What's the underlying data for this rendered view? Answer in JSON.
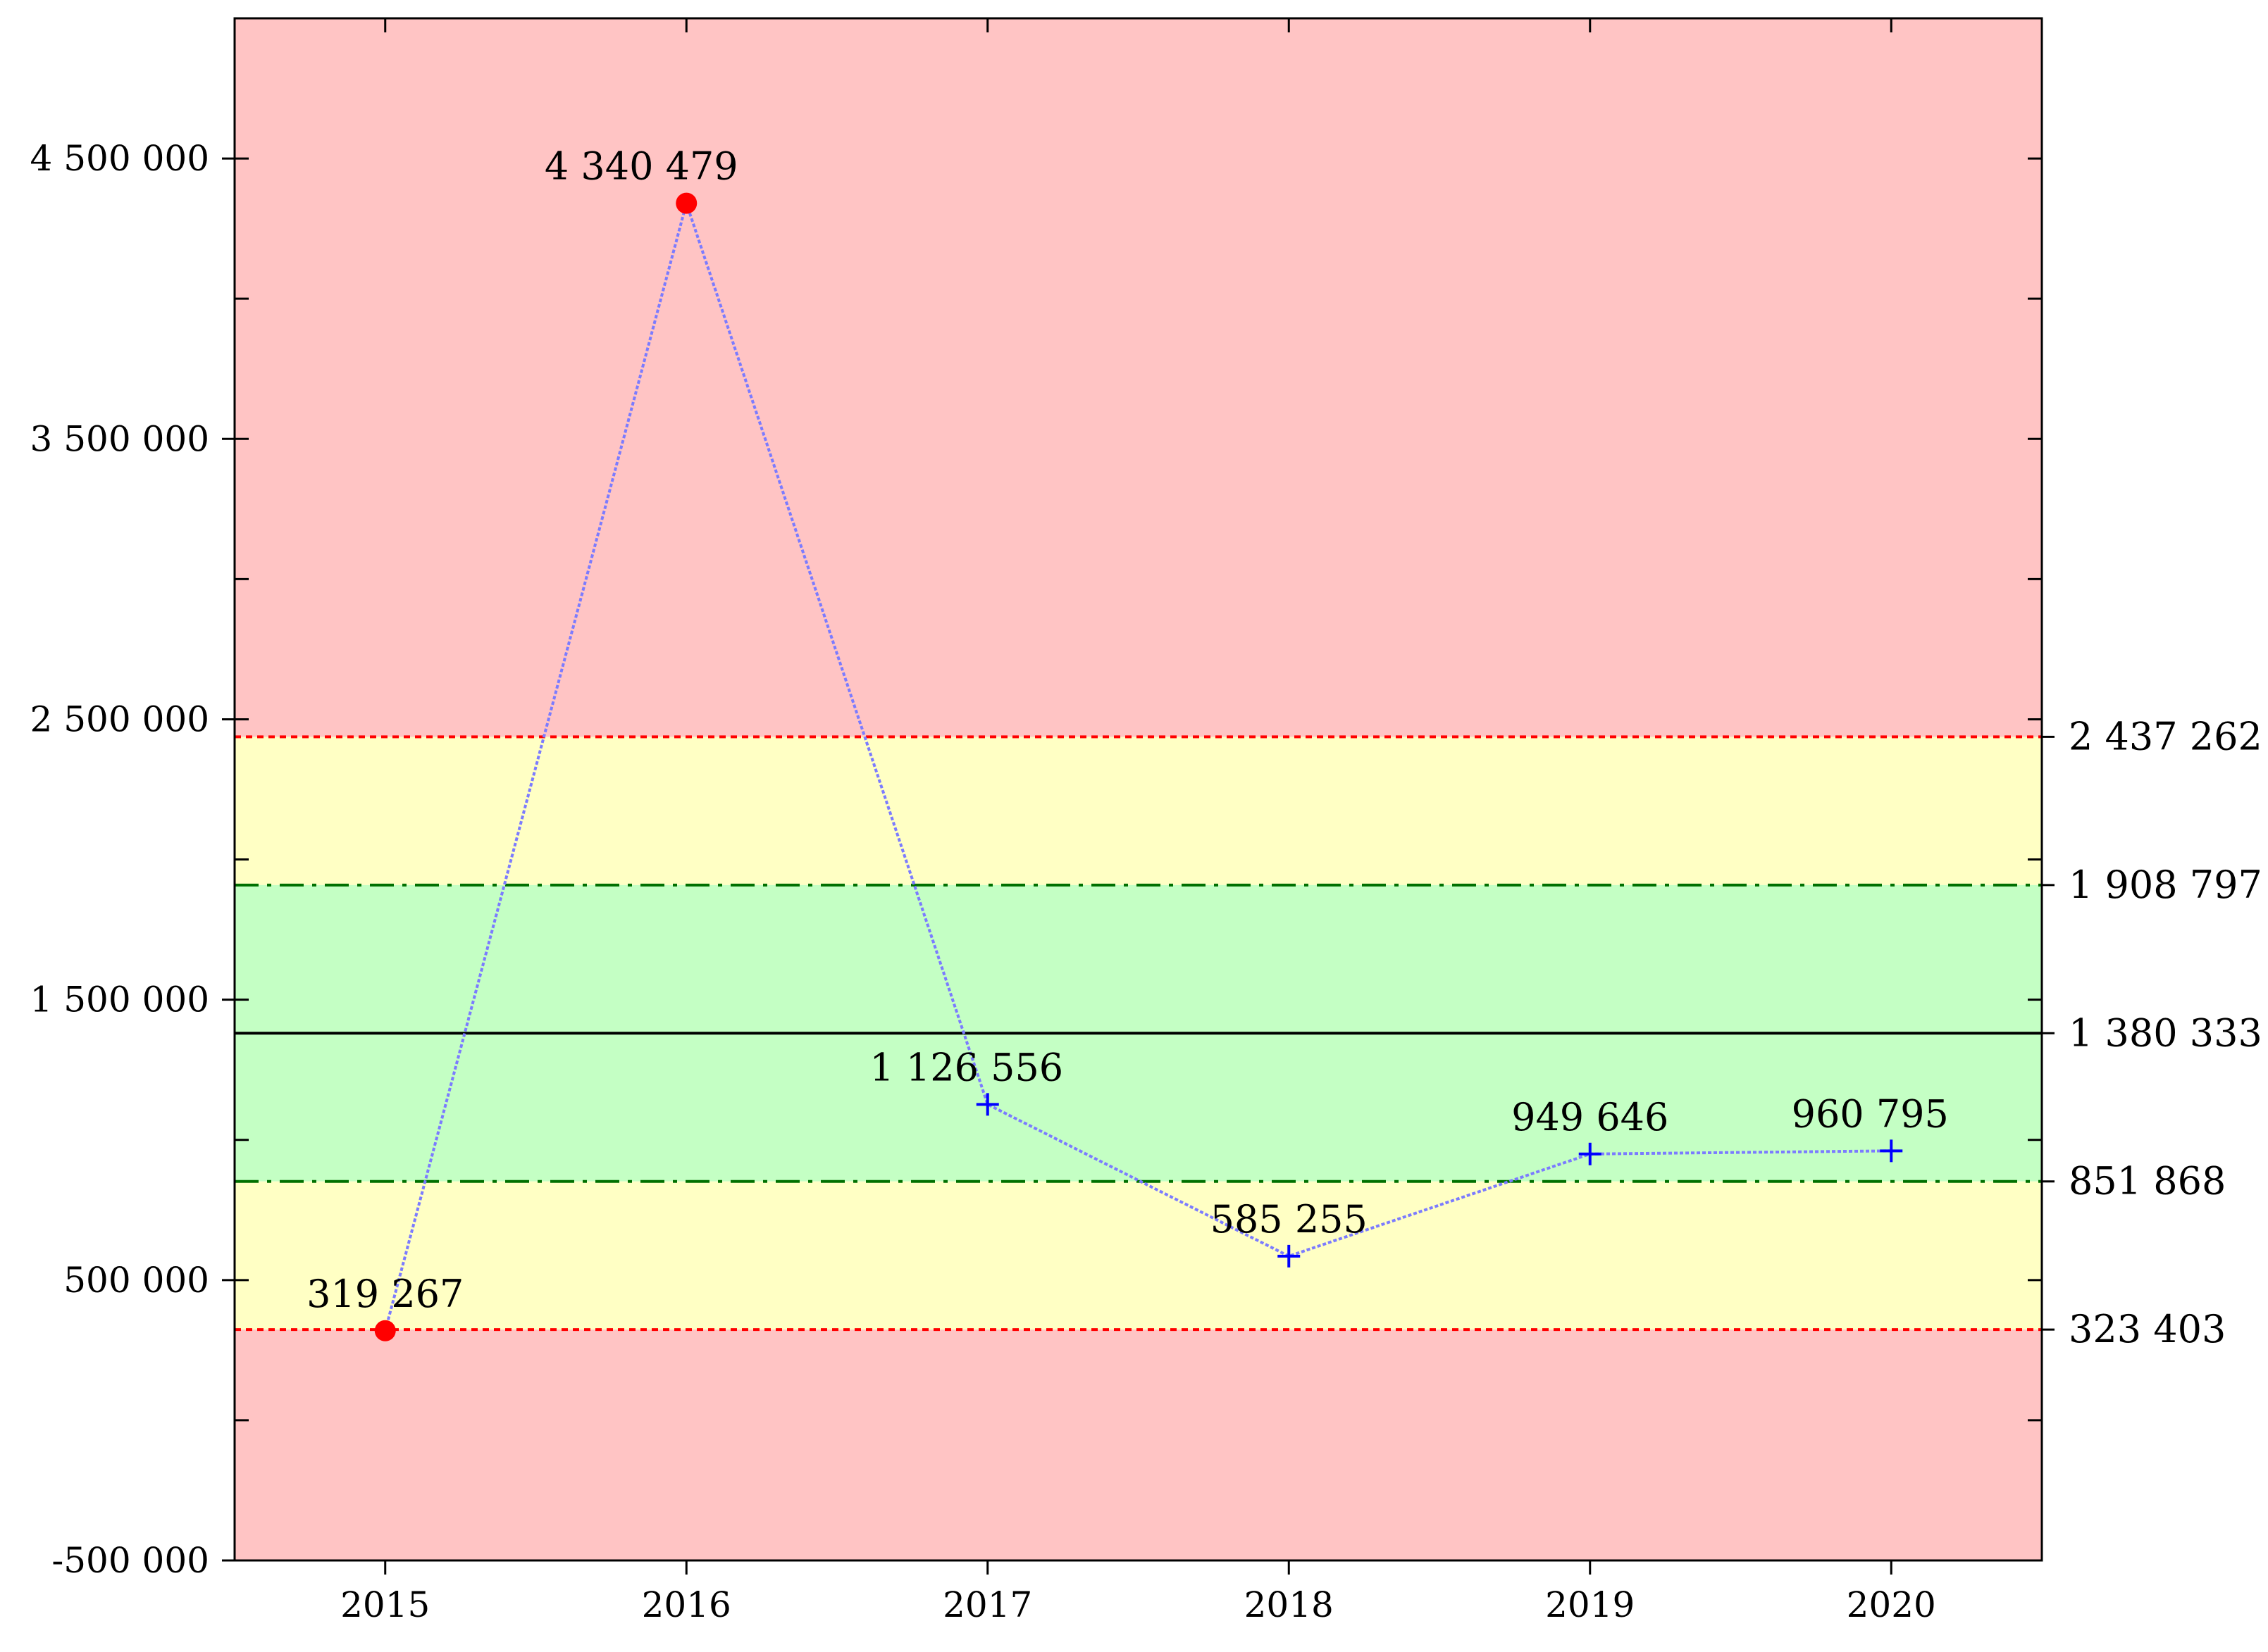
{
  "chart_data": {
    "type": "line",
    "title": "",
    "xlabel": "",
    "ylabel": "",
    "ylim": [
      -500000,
      5000000
    ],
    "grid": false,
    "categories": [
      "2015",
      "2016",
      "2017",
      "2018",
      "2019",
      "2020"
    ],
    "series": [
      {
        "values": [
          319267,
          4340479,
          1126556,
          585255,
          949646,
          960795
        ],
        "point_labels": [
          "319 267",
          "4 340 479",
          "1 126 556",
          "585 255",
          "949 646",
          "960 795"
        ],
        "out_of_control": [
          true,
          true,
          false,
          false,
          false,
          false
        ],
        "color": "#0000ff",
        "line_color": "#7b7bff",
        "alarm_color": "#ff0000"
      }
    ],
    "y_ticks": [
      {
        "value": 4500000,
        "label": "4 500 000"
      },
      {
        "value": 3500000,
        "label": "3 500 000"
      },
      {
        "value": 2500000,
        "label": "2 500 000"
      },
      {
        "value": 1500000,
        "label": "1 500 000"
      },
      {
        "value": 500000,
        "label": "500 000"
      },
      {
        "value": -500000,
        "label": "-500 000"
      }
    ],
    "y_minor_step": 500000,
    "control_limits": [
      {
        "name": "upper-control-limit",
        "value": 2437262,
        "label": "2 437 262",
        "style": "dotted",
        "color": "#ff0000"
      },
      {
        "name": "upper-warning-limit",
        "value": 1908797,
        "label": "1 908 797",
        "style": "dashdot",
        "color": "#007000"
      },
      {
        "name": "center-line",
        "value": 1380333,
        "label": "1 380 333",
        "style": "solid",
        "color": "#000000"
      },
      {
        "name": "lower-warning-limit",
        "value": 851868,
        "label": "851 868",
        "style": "dashdot",
        "color": "#007000"
      },
      {
        "name": "lower-control-limit",
        "value": 323403,
        "label": "323 403",
        "style": "dotted",
        "color": "#ff0000"
      }
    ],
    "zone_colors": {
      "red": "#ffc4c4",
      "yellow": "#ffffc4",
      "green": "#c4ffc4"
    }
  }
}
